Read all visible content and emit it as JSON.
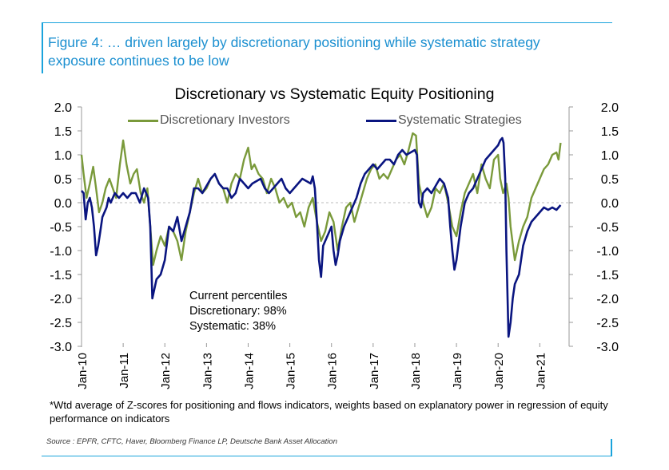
{
  "figure_title": "Figure 4: … driven largely by discretionary positioning while systematic strategy exposure continues to be low",
  "colors": {
    "accent": "#1aa3dc",
    "discretionary": "#7a9a3b",
    "systematic": "#0a1580"
  },
  "chart_data": {
    "type": "line",
    "title": "Discretionary  vs Systematic Equity Positioning",
    "xlabel": "",
    "ylabel": "",
    "ylim": [
      -3.0,
      2.0
    ],
    "y_ticks": [
      "2.0",
      "1.5",
      "1.0",
      "0.5",
      "0.0",
      "-0.5",
      "-1.0",
      "-1.5",
      "-2.0",
      "-2.5",
      "-3.0"
    ],
    "x_ticks": [
      "Jan-10",
      "Jan-11",
      "Jan-12",
      "Jan-13",
      "Jan-14",
      "Jan-15",
      "Jan-16",
      "Jan-17",
      "Jan-18",
      "Jan-19",
      "Jan-20",
      "Jan-21"
    ],
    "x_range": [
      2010.0,
      2021.55
    ],
    "legend_position": "top",
    "series": [
      {
        "name": "Discretionary Investors",
        "x": [
          2010.0,
          2010.05,
          2010.12,
          2010.2,
          2010.28,
          2010.35,
          2010.42,
          2010.5,
          2010.58,
          2010.67,
          2010.75,
          2010.83,
          2010.92,
          2011.0,
          2011.08,
          2011.17,
          2011.25,
          2011.33,
          2011.42,
          2011.5,
          2011.58,
          2011.65,
          2011.72,
          2011.8,
          2011.9,
          2012.0,
          2012.1,
          2012.2,
          2012.3,
          2012.4,
          2012.5,
          2012.6,
          2012.7,
          2012.8,
          2012.9,
          2013.0,
          2013.1,
          2013.2,
          2013.3,
          2013.4,
          2013.5,
          2013.6,
          2013.7,
          2013.8,
          2013.9,
          2014.0,
          2014.08,
          2014.15,
          2014.25,
          2014.35,
          2014.45,
          2014.55,
          2014.65,
          2014.75,
          2014.85,
          2014.95,
          2015.05,
          2015.15,
          2015.25,
          2015.35,
          2015.45,
          2015.55,
          2015.65,
          2015.75,
          2015.85,
          2015.95,
          2016.05,
          2016.15,
          2016.25,
          2016.35,
          2016.45,
          2016.55,
          2016.65,
          2016.75,
          2016.85,
          2016.95,
          2017.05,
          2017.15,
          2017.25,
          2017.35,
          2017.45,
          2017.55,
          2017.65,
          2017.75,
          2017.85,
          2017.95,
          2018.03,
          2018.1,
          2018.2,
          2018.3,
          2018.4,
          2018.5,
          2018.6,
          2018.7,
          2018.8,
          2018.9,
          2019.0,
          2019.1,
          2019.2,
          2019.3,
          2019.4,
          2019.5,
          2019.6,
          2019.7,
          2019.8,
          2019.9,
          2020.0,
          2020.05,
          2020.12,
          2020.2,
          2020.25,
          2020.3,
          2020.4,
          2020.5,
          2020.6,
          2020.7,
          2020.8,
          2020.9,
          2021.0,
          2021.1,
          2021.2,
          2021.3,
          2021.4,
          2021.45,
          2021.5
        ],
        "values": [
          1.0,
          0.6,
          0.1,
          0.4,
          0.75,
          0.3,
          -0.2,
          0.0,
          0.3,
          0.5,
          0.3,
          0.1,
          0.8,
          1.3,
          0.8,
          0.4,
          0.6,
          0.7,
          0.2,
          0.0,
          0.3,
          -0.5,
          -1.3,
          -1.0,
          -0.7,
          -0.9,
          -0.5,
          -0.6,
          -0.8,
          -1.2,
          -0.6,
          -0.2,
          0.2,
          0.5,
          0.2,
          0.3,
          0.5,
          0.6,
          0.4,
          0.3,
          0.0,
          0.4,
          0.6,
          0.5,
          0.9,
          1.15,
          0.7,
          0.8,
          0.6,
          0.5,
          0.2,
          0.5,
          0.3,
          0.0,
          0.1,
          -0.1,
          0.0,
          -0.3,
          -0.2,
          -0.5,
          -0.1,
          0.1,
          -0.4,
          -0.8,
          -0.6,
          -0.2,
          -0.4,
          -1.0,
          -0.5,
          -0.1,
          0.0,
          -0.4,
          -0.1,
          0.2,
          0.5,
          0.7,
          0.8,
          0.5,
          0.6,
          0.5,
          0.7,
          0.9,
          1.0,
          0.8,
          1.1,
          1.45,
          1.4,
          0.4,
          0.0,
          -0.3,
          -0.1,
          0.3,
          0.2,
          0.4,
          0.0,
          -0.5,
          -0.7,
          -0.2,
          0.2,
          0.4,
          0.6,
          0.2,
          0.8,
          0.5,
          0.3,
          0.9,
          1.0,
          0.5,
          0.2,
          0.4,
          0.1,
          -0.5,
          -1.2,
          -0.8,
          -0.5,
          -0.3,
          0.1,
          0.3,
          0.5,
          0.7,
          0.8,
          1.0,
          1.05,
          0.9,
          1.25
        ]
      },
      {
        "name": "Systematic Strategies",
        "x": [
          2010.0,
          2010.05,
          2010.1,
          2010.15,
          2010.2,
          2010.25,
          2010.3,
          2010.35,
          2010.4,
          2010.45,
          2010.5,
          2010.55,
          2010.6,
          2010.65,
          2010.7,
          2010.8,
          2010.9,
          2011.0,
          2011.1,
          2011.2,
          2011.3,
          2011.4,
          2011.5,
          2011.55,
          2011.6,
          2011.65,
          2011.7,
          2011.75,
          2011.8,
          2011.9,
          2012.0,
          2012.1,
          2012.2,
          2012.3,
          2012.4,
          2012.5,
          2012.6,
          2012.7,
          2012.8,
          2012.9,
          2013.0,
          2013.1,
          2013.2,
          2013.3,
          2013.4,
          2013.5,
          2013.6,
          2013.7,
          2013.8,
          2013.9,
          2014.0,
          2014.1,
          2014.2,
          2014.3,
          2014.4,
          2014.5,
          2014.6,
          2014.7,
          2014.8,
          2014.9,
          2015.0,
          2015.1,
          2015.2,
          2015.3,
          2015.4,
          2015.5,
          2015.55,
          2015.6,
          2015.65,
          2015.7,
          2015.75,
          2015.8,
          2015.9,
          2016.0,
          2016.05,
          2016.1,
          2016.15,
          2016.2,
          2016.3,
          2016.4,
          2016.5,
          2016.6,
          2016.7,
          2016.8,
          2016.9,
          2017.0,
          2017.1,
          2017.2,
          2017.3,
          2017.4,
          2017.5,
          2017.6,
          2017.7,
          2017.8,
          2017.9,
          2018.0,
          2018.05,
          2018.1,
          2018.15,
          2018.2,
          2018.3,
          2018.4,
          2018.5,
          2018.6,
          2018.7,
          2018.8,
          2018.85,
          2018.9,
          2018.95,
          2019.0,
          2019.1,
          2019.2,
          2019.3,
          2019.4,
          2019.5,
          2019.6,
          2019.7,
          2019.8,
          2019.9,
          2020.0,
          2020.05,
          2020.1,
          2020.13,
          2020.17,
          2020.2,
          2020.25,
          2020.3,
          2020.35,
          2020.4,
          2020.5,
          2020.6,
          2020.7,
          2020.8,
          2020.9,
          2021.0,
          2021.1,
          2021.2,
          2021.3,
          2021.4,
          2021.5
        ],
        "values": [
          0.25,
          0.2,
          -0.35,
          0.0,
          0.1,
          -0.1,
          -0.5,
          -1.1,
          -0.9,
          -0.6,
          -0.3,
          -0.2,
          -0.1,
          0.1,
          0.0,
          0.2,
          0.1,
          0.2,
          0.1,
          0.2,
          0.2,
          0.0,
          0.3,
          0.2,
          0.1,
          -0.5,
          -2.0,
          -1.8,
          -1.6,
          -1.5,
          -1.2,
          -0.5,
          -0.6,
          -0.3,
          -0.8,
          -0.5,
          -0.2,
          0.3,
          0.3,
          0.2,
          0.35,
          0.5,
          0.6,
          0.4,
          0.3,
          0.3,
          0.1,
          0.2,
          0.5,
          0.4,
          0.3,
          0.4,
          0.45,
          0.5,
          0.3,
          0.2,
          0.3,
          0.4,
          0.5,
          0.3,
          0.2,
          0.3,
          0.4,
          0.5,
          0.45,
          0.4,
          0.55,
          0.3,
          -0.4,
          -1.2,
          -1.55,
          -0.9,
          -0.7,
          -0.5,
          -1.0,
          -1.3,
          -1.1,
          -0.8,
          -0.5,
          -0.3,
          -0.1,
          0.1,
          0.4,
          0.6,
          0.7,
          0.8,
          0.7,
          0.8,
          0.9,
          0.9,
          0.8,
          1.0,
          1.1,
          1.0,
          1.05,
          1.1,
          1.0,
          0.0,
          -0.1,
          0.2,
          0.3,
          0.2,
          0.35,
          0.5,
          0.4,
          0.1,
          -0.5,
          -1.0,
          -1.4,
          -1.2,
          -0.5,
          0.0,
          0.2,
          0.3,
          0.5,
          0.7,
          0.9,
          1.0,
          1.1,
          1.2,
          1.3,
          1.35,
          1.25,
          0.5,
          -1.0,
          -2.8,
          -2.5,
          -2.0,
          -1.7,
          -1.5,
          -0.9,
          -0.6,
          -0.4,
          -0.3,
          -0.2,
          -0.1,
          -0.15,
          -0.1,
          -0.15,
          -0.05
        ]
      }
    ],
    "annotations": [
      "Current percentiles",
      "Discretionary: 98%",
      "Systematic: 38%"
    ]
  },
  "footnote": "*Wtd average of Z-scores for positioning and flows indicators, weights based on explanatory power in regression of equity performance on indicators",
  "source": "Source : EPFR, CFTC, Haver, Bloomberg Finance LP, Deutsche Bank Asset Allocation"
}
